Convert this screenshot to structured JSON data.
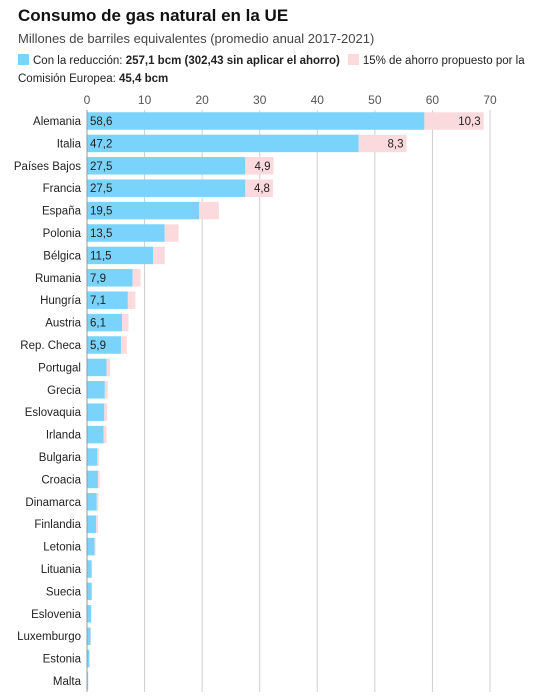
{
  "title": "Consumo de gas natural en la UE",
  "subtitle": "Millones de barriles equivalentes (promedio anual 2017-2021)",
  "legend": {
    "reduced_label": "Con la reducción: ",
    "reduced_value": "257,1 bcm (302,43 sin aplicar el ahorro)",
    "saving_label": "15% de ahorro propuesto por la Comisión Europea: ",
    "saving_value": "45,4 bcm"
  },
  "colors": {
    "reduced": "#7ad3fb",
    "saving": "#fadadd",
    "grid": "#cfcfcf"
  },
  "chart_data": {
    "type": "bar",
    "orientation": "horizontal",
    "stacked": true,
    "title": "Consumo de gas natural en la UE",
    "subtitle": "Millones de barriles equivalentes (promedio anual 2017-2021)",
    "xlim": [
      0,
      70
    ],
    "xticks": [
      0,
      10,
      20,
      30,
      40,
      50,
      60,
      70
    ],
    "xtick_labels": [
      "0",
      "10",
      "20",
      "30",
      "40",
      "50",
      "60",
      "70"
    ],
    "categories": [
      "Alemania",
      "Italia",
      "Países Bajos",
      "Francia",
      "España",
      "Polonia",
      "Bélgica",
      "Rumania",
      "Hungría",
      "Austria",
      "Rep. Checa",
      "Portugal",
      "Grecia",
      "Eslovaquia",
      "Irlanda",
      "Bulgaria",
      "Croacia",
      "Dinamarca",
      "Finlandia",
      "Letonia",
      "Lituania",
      "Suecia",
      "Eslovenia",
      "Luxemburgo",
      "Estonia",
      "Malta"
    ],
    "series": [
      {
        "name": "Con la reducción",
        "values": [
          58.6,
          47.2,
          27.5,
          27.5,
          19.5,
          13.5,
          11.5,
          7.9,
          7.1,
          6.1,
          5.9,
          3.4,
          3.1,
          3.0,
          2.9,
          1.8,
          1.9,
          1.7,
          1.6,
          1.3,
          0.8,
          0.8,
          0.7,
          0.6,
          0.4,
          0.2
        ],
        "labels": [
          "58,6",
          "47,2",
          "27,5",
          "27,5",
          "19,5",
          "13,5",
          "11,5",
          "7,9",
          "7,1",
          "6,1",
          "5,9",
          "",
          "",
          "",
          "",
          "",
          "",
          "",
          "",
          "",
          "",
          "",
          "",
          "",
          "",
          ""
        ]
      },
      {
        "name": "15% de ahorro propuesto por la Comisión Europea",
        "values": [
          10.3,
          8.3,
          4.9,
          4.8,
          3.4,
          2.4,
          2.0,
          1.4,
          1.3,
          1.1,
          1.0,
          0.6,
          0.5,
          0.5,
          0.5,
          0.3,
          0.3,
          0.3,
          0.3,
          0.2,
          0.1,
          0.1,
          0.1,
          0.1,
          0.1,
          0.0
        ],
        "labels": [
          "10,3",
          "8,3",
          "4,9",
          "4,8",
          "",
          "",
          "",
          "",
          "",
          "",
          "",
          "",
          "",
          "",
          "",
          "",
          "",
          "",
          "",
          "",
          "",
          "",
          "",
          "",
          "",
          ""
        ]
      }
    ],
    "grid": true,
    "legend": "top"
  }
}
